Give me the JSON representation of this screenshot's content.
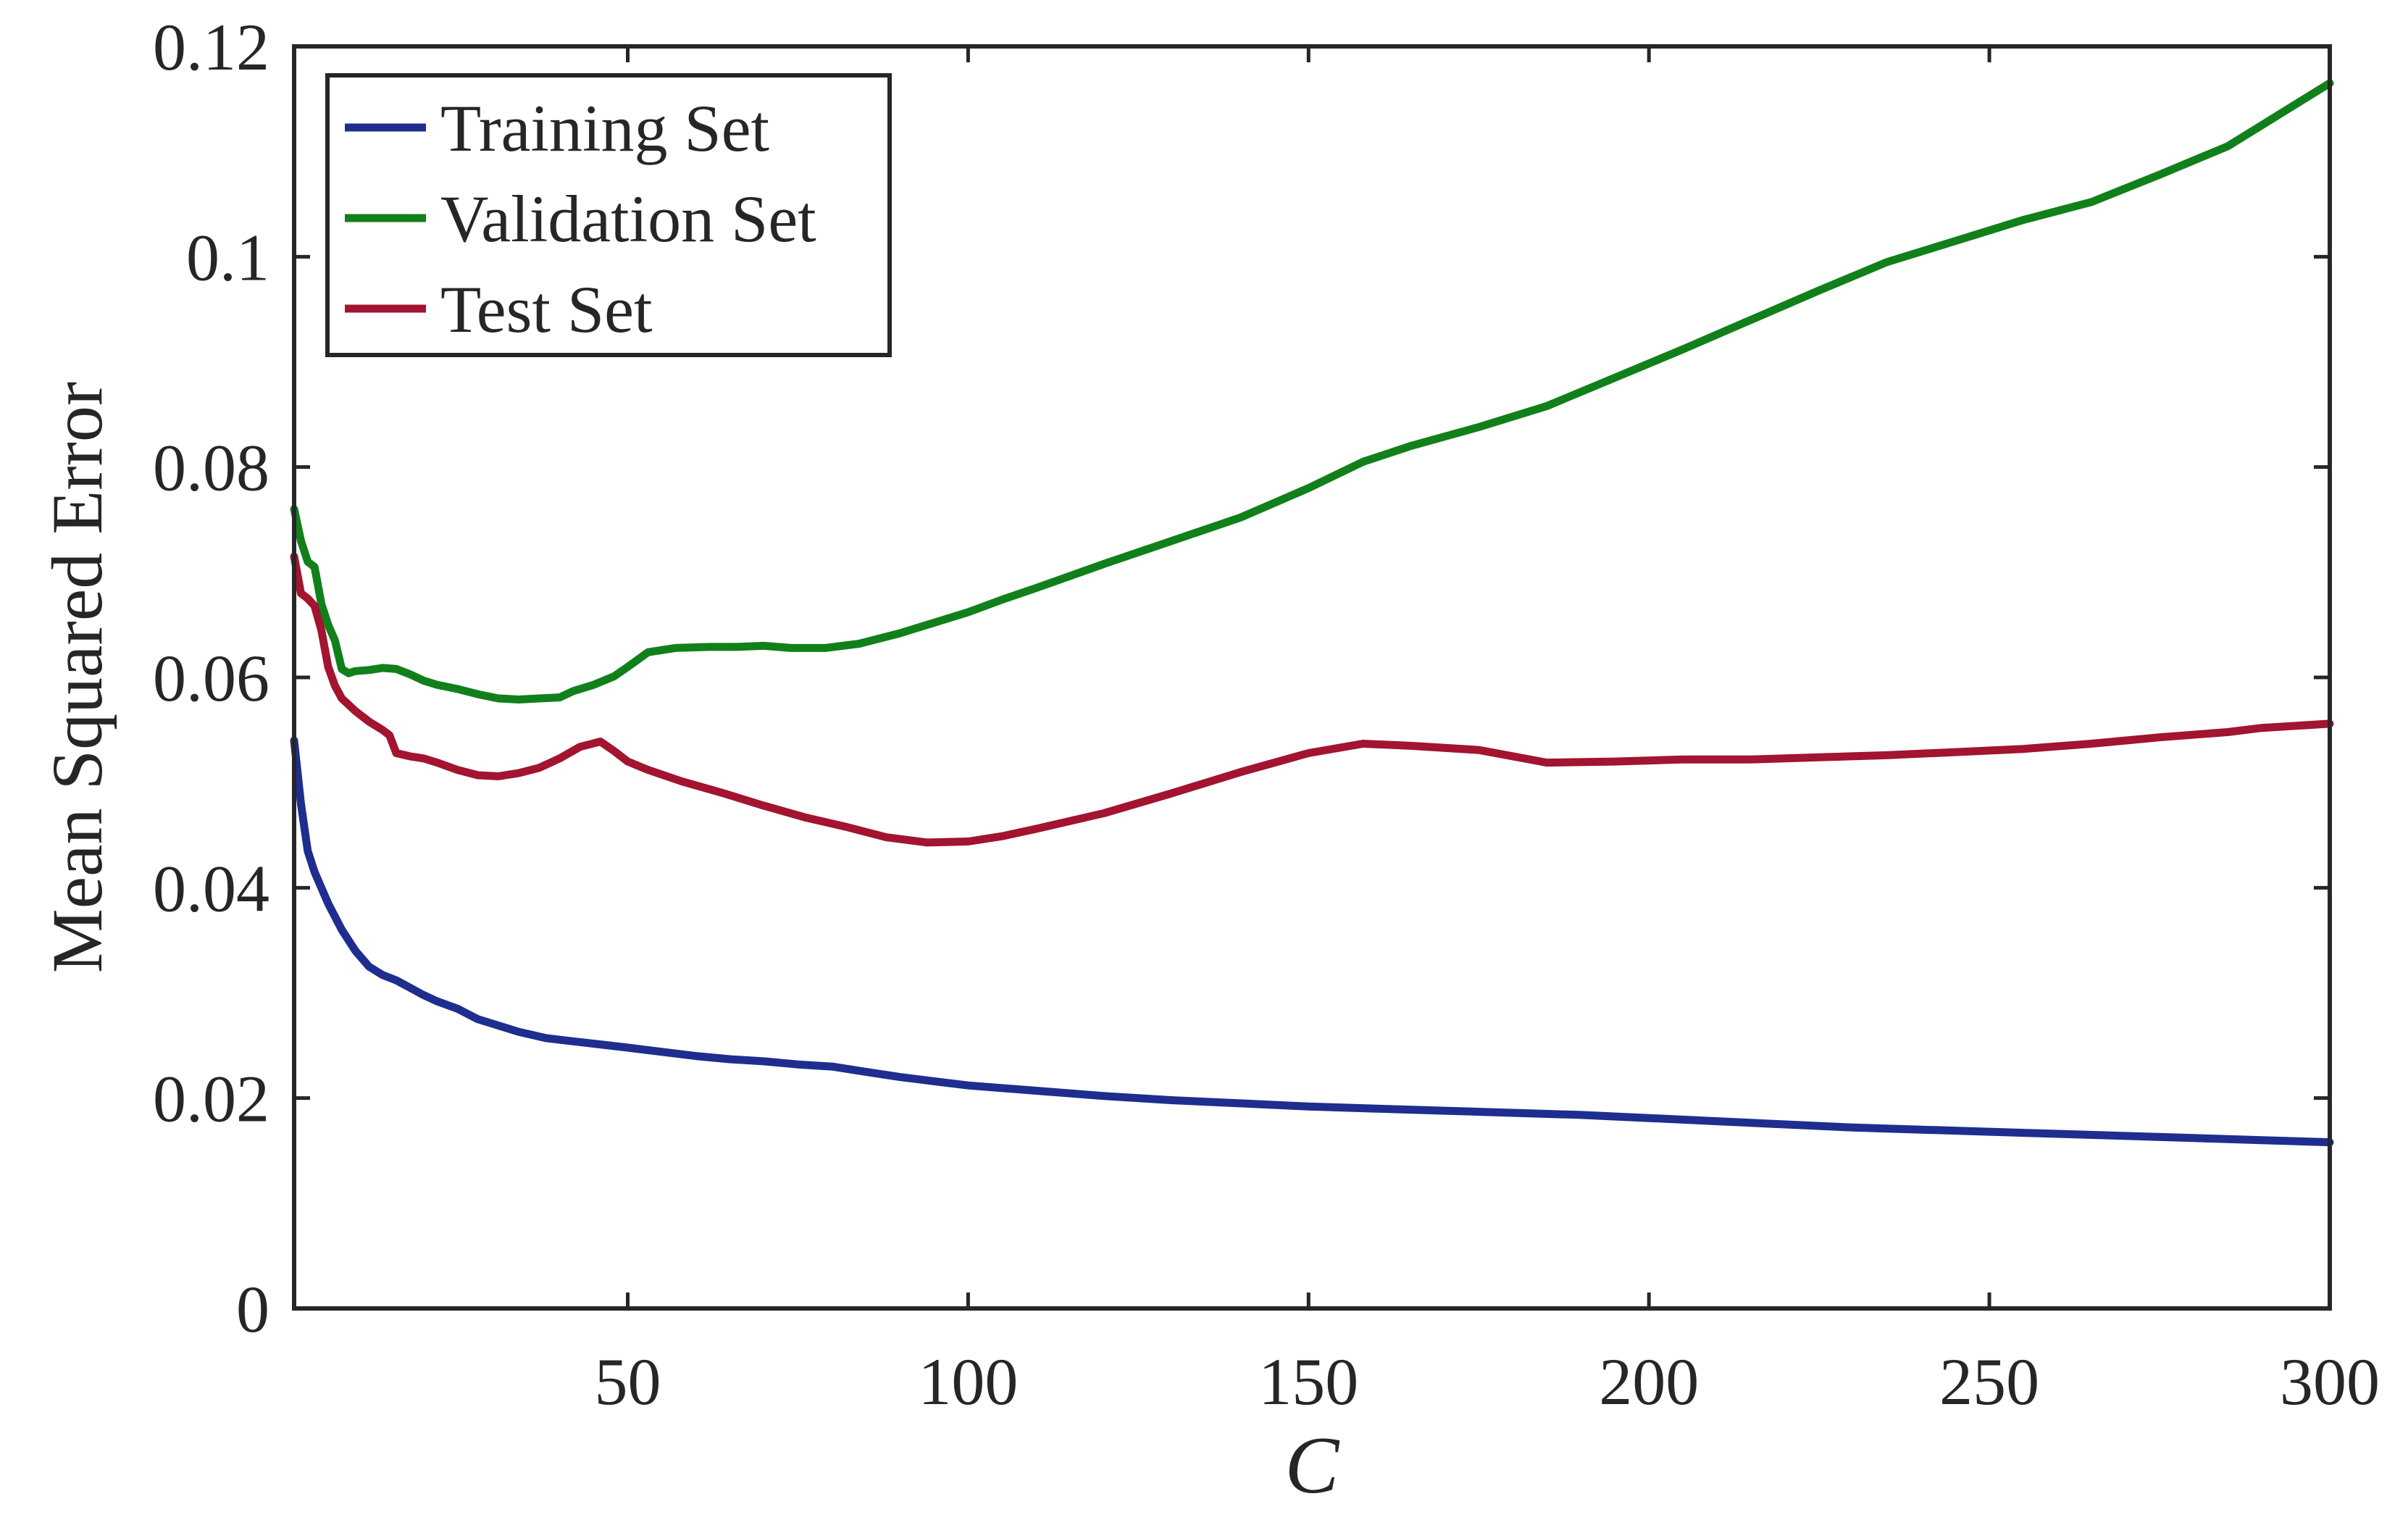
{
  "chart_data": {
    "type": "line",
    "title": "",
    "xlabel": "C",
    "ylabel": "Mean Squared Error",
    "xlim": [
      1,
      300
    ],
    "ylim": [
      0,
      0.12
    ],
    "xticks": [
      50,
      100,
      150,
      200,
      250,
      300
    ],
    "xtick_labels": [
      "50",
      "100",
      "150",
      "200",
      "250",
      "300"
    ],
    "yticks": [
      0,
      0.02,
      0.04,
      0.06,
      0.08,
      0.1,
      0.12
    ],
    "ytick_labels": [
      "0",
      "0.02",
      "0.04",
      "0.06",
      "0.08",
      "0.1",
      "0.12"
    ],
    "grid": false,
    "legend_position": "top-left",
    "series": [
      {
        "name": "Training Set",
        "color": "#1f2d8f",
        "x": [
          1,
          2,
          3,
          4,
          6,
          8,
          10,
          12,
          14,
          16,
          18,
          20,
          22,
          25,
          28,
          31,
          34,
          38,
          42,
          46,
          50,
          55,
          60,
          65,
          70,
          75,
          80,
          85,
          90,
          95,
          100,
          110,
          120,
          130,
          140,
          150,
          160,
          170,
          180,
          190,
          200,
          210,
          220,
          230,
          240,
          250,
          260,
          270,
          280,
          290,
          300
        ],
        "y": [
          0.054,
          0.048,
          0.0435,
          0.0415,
          0.0385,
          0.036,
          0.034,
          0.0325,
          0.0317,
          0.0312,
          0.0305,
          0.0298,
          0.0292,
          0.0285,
          0.0275,
          0.0269,
          0.0263,
          0.0257,
          0.0254,
          0.0251,
          0.0248,
          0.0244,
          0.024,
          0.0237,
          0.0235,
          0.0232,
          0.023,
          0.0225,
          0.022,
          0.0216,
          0.0212,
          0.0207,
          0.0202,
          0.0198,
          0.0195,
          0.0192,
          0.019,
          0.0188,
          0.0186,
          0.0184,
          0.0181,
          0.0178,
          0.0175,
          0.0172,
          0.017,
          0.0168,
          0.0166,
          0.0164,
          0.0162,
          0.016,
          0.0158
        ]
      },
      {
        "name": "Validation Set",
        "color": "#11801b",
        "x": [
          1,
          2,
          3,
          4,
          5,
          6,
          7,
          8,
          9,
          10,
          12,
          14,
          16,
          18,
          20,
          22,
          25,
          28,
          31,
          34,
          37,
          40,
          42,
          45,
          48,
          50,
          53,
          57,
          62,
          66,
          70,
          74,
          79,
          84,
          90,
          95,
          100,
          105,
          110,
          120,
          130,
          140,
          150,
          158,
          165,
          175,
          185,
          195,
          205,
          215,
          225,
          235,
          245,
          255,
          265,
          275,
          285,
          290,
          300
        ],
        "y": [
          0.076,
          0.073,
          0.071,
          0.0705,
          0.067,
          0.065,
          0.0635,
          0.0608,
          0.0604,
          0.0606,
          0.0607,
          0.0609,
          0.0608,
          0.0603,
          0.0597,
          0.0593,
          0.0589,
          0.0584,
          0.058,
          0.0579,
          0.058,
          0.0581,
          0.0587,
          0.0593,
          0.0601,
          0.061,
          0.0624,
          0.0628,
          0.0629,
          0.0629,
          0.063,
          0.0628,
          0.0628,
          0.0632,
          0.0642,
          0.0652,
          0.0662,
          0.0674,
          0.0685,
          0.0708,
          0.073,
          0.0752,
          0.078,
          0.0805,
          0.082,
          0.0838,
          0.0858,
          0.0885,
          0.0912,
          0.094,
          0.0968,
          0.0995,
          0.1015,
          0.1035,
          0.1052,
          0.1078,
          0.1105,
          0.1125,
          0.1165
        ]
      },
      {
        "name": "Test Set",
        "color": "#a2142f",
        "x": [
          1,
          2,
          3,
          4,
          5,
          6,
          7,
          8,
          10,
          12,
          14,
          15,
          16,
          18,
          20,
          22,
          25,
          28,
          31,
          34,
          37,
          40,
          43,
          46,
          48,
          50,
          53,
          58,
          64,
          70,
          76,
          82,
          88,
          94,
          100,
          105,
          110,
          120,
          130,
          140,
          150,
          158,
          165,
          175,
          185,
          195,
          205,
          215,
          225,
          235,
          245,
          255,
          265,
          275,
          285,
          290,
          300
        ],
        "y": [
          0.0715,
          0.068,
          0.0675,
          0.0668,
          0.0645,
          0.061,
          0.0592,
          0.058,
          0.0568,
          0.0558,
          0.055,
          0.0545,
          0.0528,
          0.0525,
          0.0523,
          0.0519,
          0.0512,
          0.0507,
          0.0506,
          0.0509,
          0.0514,
          0.0523,
          0.0534,
          0.0539,
          0.053,
          0.052,
          0.0512,
          0.0501,
          0.049,
          0.0478,
          0.0467,
          0.0458,
          0.0448,
          0.0443,
          0.0444,
          0.0449,
          0.0456,
          0.0471,
          0.049,
          0.051,
          0.0528,
          0.0537,
          0.0535,
          0.0531,
          0.0519,
          0.052,
          0.0522,
          0.0522,
          0.0524,
          0.0526,
          0.0529,
          0.0532,
          0.0537,
          0.0543,
          0.0548,
          0.0552,
          0.0556
        ]
      }
    ]
  }
}
